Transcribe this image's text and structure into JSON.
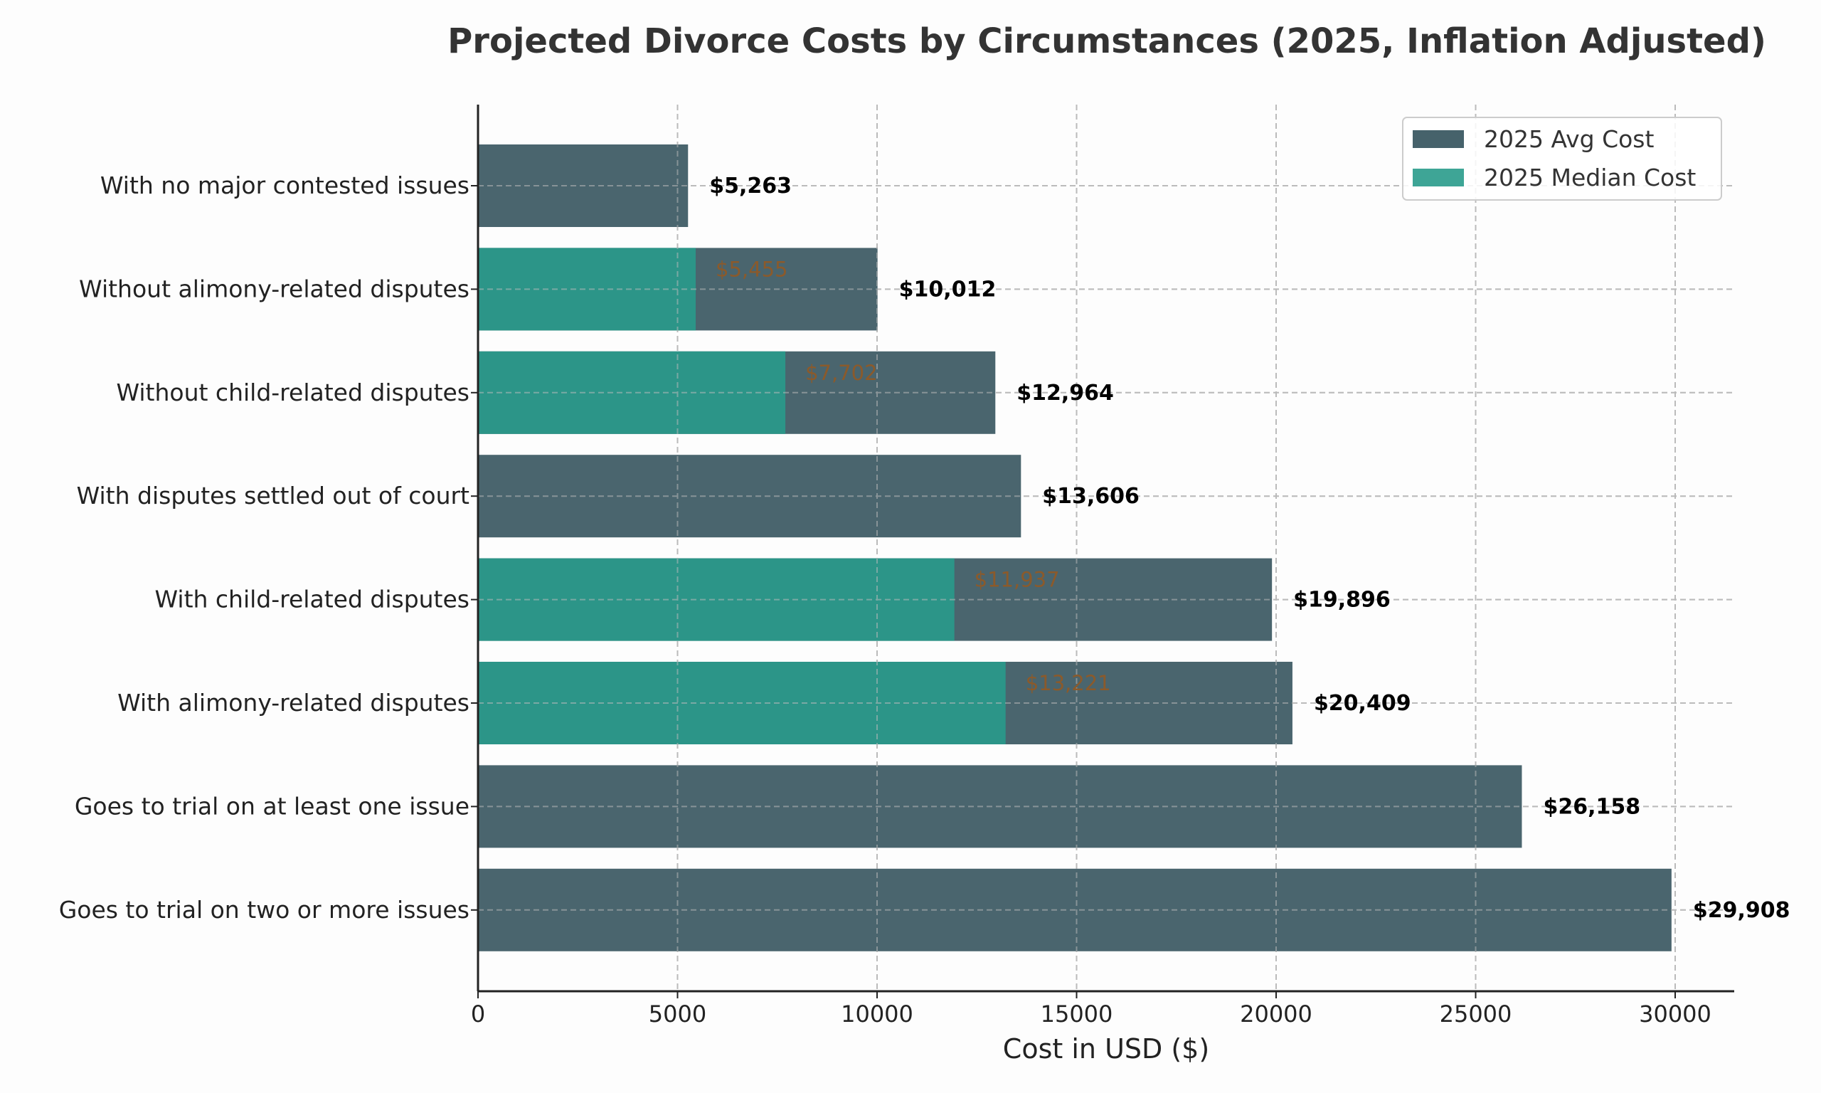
{
  "chart_data": {
    "type": "bar",
    "orientation": "horizontal",
    "title": "Projected Divorce Costs by Circumstances (2025, Inflation Adjusted)",
    "xlabel": "Cost in USD ($)",
    "ylabel": "",
    "xlim": [
      0,
      31400
    ],
    "xticks": [
      0,
      5000,
      10000,
      15000,
      20000,
      25000,
      30000
    ],
    "grid": true,
    "legend_position": "top-right",
    "categories": [
      "With no major contested issues",
      "Without alimony-related disputes",
      "Without child-related disputes",
      "With disputes settled out of court",
      "With child-related disputes",
      "With alimony-related disputes",
      "Goes to trial on at least one issue",
      "Goes to trial on two or more issues"
    ],
    "series": [
      {
        "name": "2025 Avg Cost",
        "color": "#46626b",
        "values": [
          5263,
          10012,
          12964,
          13606,
          19896,
          20409,
          26158,
          29908
        ],
        "labels": [
          "$5,263",
          "$10,012",
          "$12,964",
          "$13,606",
          "$19,896",
          "$20,409",
          "$26,158",
          "$29,908"
        ]
      },
      {
        "name": "2025 Median Cost",
        "color": "#2c9588",
        "values": [
          null,
          5455,
          7702,
          null,
          11937,
          13221,
          null,
          null
        ],
        "labels": [
          null,
          "$5,455",
          "$7,702",
          null,
          "$11,937",
          "$13,221",
          null,
          null
        ]
      }
    ],
    "median_label_color": "#8b5a2b"
  }
}
